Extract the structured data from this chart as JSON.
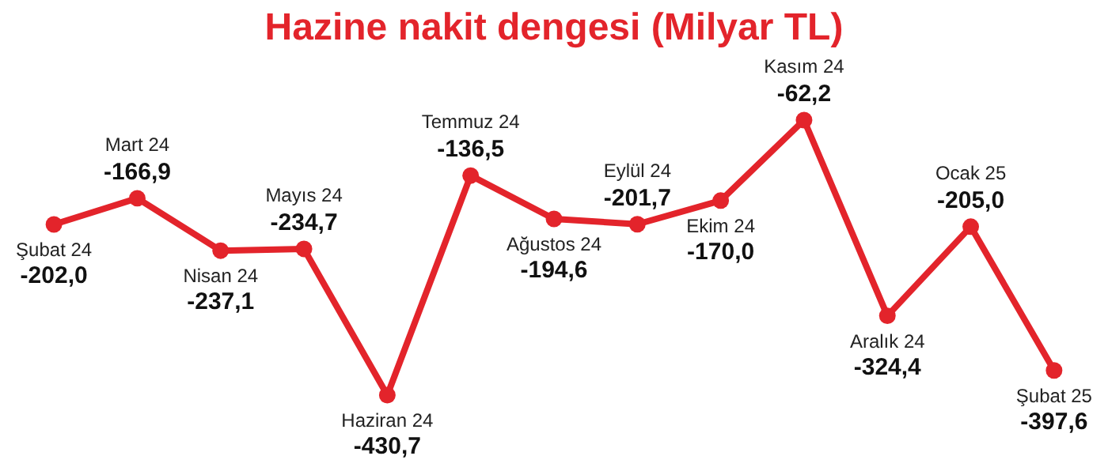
{
  "chart_data": {
    "type": "line",
    "title": "Hazine nakit dengesi (Milyar TL)",
    "categories": [
      "Şubat 24",
      "Mart 24",
      "Nisan 24",
      "Mayıs 24",
      "Haziran 24",
      "Temmuz 24",
      "Ağustos 24",
      "Eylül 24",
      "Ekim 24",
      "Kasım 24",
      "Aralık 24",
      "Ocak 25",
      "Şubat 25"
    ],
    "series": [
      {
        "color": "#e3242b",
        "values": [
          -202.0,
          -166.9,
          -237.1,
          -234.7,
          -430.7,
          -136.5,
          -194.6,
          -201.7,
          -170.0,
          -62.2,
          -324.4,
          -205.0,
          -397.6
        ],
        "value_labels": [
          "-202,0",
          "-166,9",
          "-237,1",
          "-234,7",
          "-430,7",
          "-136,5",
          "-194,6",
          "-201,7",
          "-170,0",
          "-62,2",
          "-324,4",
          "-205,0",
          "-397,6"
        ]
      }
    ],
    "marker": "circle",
    "grid": false
  }
}
